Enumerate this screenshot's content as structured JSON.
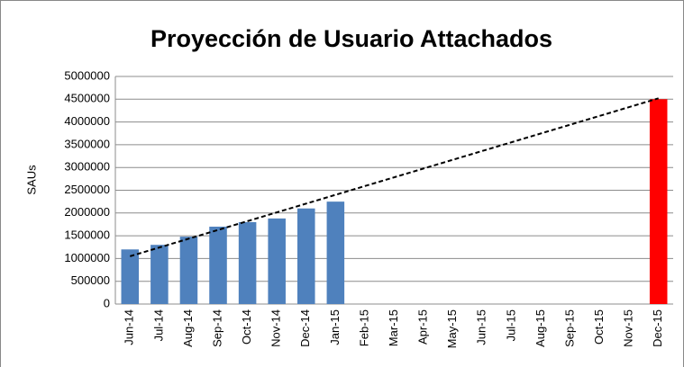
{
  "chart_data": {
    "type": "bar",
    "title": "Proyección de Usuario Attachados",
    "y_label": "SAUs",
    "categories": [
      "Jun-14",
      "Jul-14",
      "Aug-14",
      "Sep-14",
      "Oct-14",
      "Nov-14",
      "Dec-14",
      "Jan-15",
      "Feb-15",
      "Mar-15",
      "Apr-15",
      "May-15",
      "Jun-15",
      "Jul-15",
      "Aug-15",
      "Sep-15",
      "Oct-15",
      "Nov-15",
      "Dec-15"
    ],
    "values": [
      1200000,
      1300000,
      1480000,
      1700000,
      1800000,
      1880000,
      2100000,
      2250000,
      null,
      null,
      null,
      null,
      null,
      null,
      null,
      null,
      null,
      null,
      4500000
    ],
    "colors": [
      "#4f81bd",
      "#4f81bd",
      "#4f81bd",
      "#4f81bd",
      "#4f81bd",
      "#4f81bd",
      "#4f81bd",
      "#4f81bd",
      "#4f81bd",
      "#4f81bd",
      "#4f81bd",
      "#4f81bd",
      "#4f81bd",
      "#4f81bd",
      "#4f81bd",
      "#4f81bd",
      "#4f81bd",
      "#4f81bd",
      "#ff0000"
    ],
    "trendline": [
      1050000,
      4520000
    ],
    "ylim": [
      0,
      5000000
    ],
    "yticks": [
      0,
      500000,
      1000000,
      1500000,
      2000000,
      2500000,
      3000000,
      3500000,
      4000000,
      4500000,
      5000000
    ],
    "grid": true
  }
}
